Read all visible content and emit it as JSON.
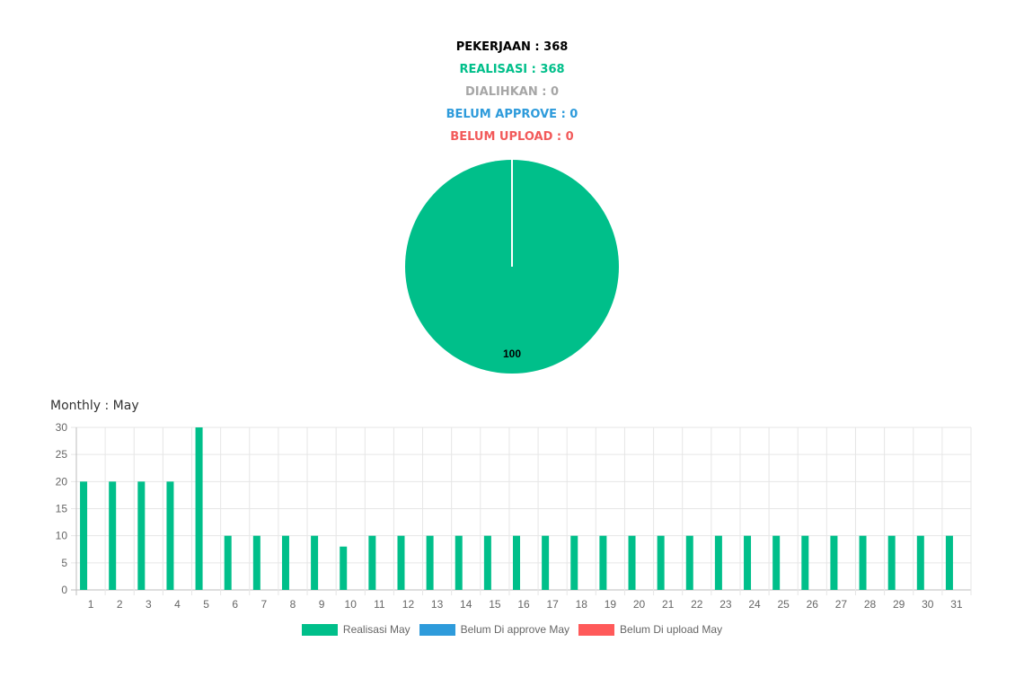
{
  "summary": {
    "pekerjaan": "PEKERJAAN : 368",
    "realisasi": "REALISASI : 368",
    "dialihkan": "DIALIHKAN : 0",
    "belum_approve": "BELUM APPROVE : 0",
    "belum_upload": "BELUM UPLOAD : 0"
  },
  "colors": {
    "pekerjaan": "#000000",
    "realisasi": "#00BF8A",
    "dialihkan": "#A6A6A6",
    "belum_approve": "#2E9BDB",
    "belum_upload": "#F25A5A"
  },
  "monthly": {
    "title": "Monthly : May"
  },
  "chart_data": [
    {
      "type": "pie",
      "slices": [
        {
          "value": 100,
          "color": "#00BF8A"
        },
        {
          "value": 0,
          "color": "#2E9BDB"
        },
        {
          "value": 0,
          "color": "#F25A5A"
        }
      ],
      "data_label": "100"
    },
    {
      "type": "bar",
      "categories": [
        "1",
        "2",
        "3",
        "4",
        "5",
        "6",
        "7",
        "8",
        "9",
        "10",
        "11",
        "12",
        "13",
        "14",
        "15",
        "16",
        "17",
        "18",
        "19",
        "20",
        "21",
        "22",
        "23",
        "24",
        "25",
        "26",
        "27",
        "28",
        "29",
        "30",
        "31"
      ],
      "series": [
        {
          "name": "Realisasi May",
          "color": "#00BF8A",
          "values": [
            20,
            20,
            20,
            20,
            30,
            10,
            10,
            10,
            10,
            8,
            10,
            10,
            10,
            10,
            10,
            10,
            10,
            10,
            10,
            10,
            10,
            10,
            10,
            10,
            10,
            10,
            10,
            10,
            10,
            10,
            10
          ]
        },
        {
          "name": "Belum Di approve May",
          "color": "#2E9BDB",
          "values": [
            0,
            0,
            0,
            0,
            0,
            0,
            0,
            0,
            0,
            0,
            0,
            0,
            0,
            0,
            0,
            0,
            0,
            0,
            0,
            0,
            0,
            0,
            0,
            0,
            0,
            0,
            0,
            0,
            0,
            0,
            0
          ]
        },
        {
          "name": "Belum Di upload May",
          "color": "#FF5A5A",
          "values": [
            0,
            0,
            0,
            0,
            0,
            0,
            0,
            0,
            0,
            0,
            0,
            0,
            0,
            0,
            0,
            0,
            0,
            0,
            0,
            0,
            0,
            0,
            0,
            0,
            0,
            0,
            0,
            0,
            0,
            0,
            0
          ]
        }
      ],
      "yticks": [
        "0",
        "5",
        "10",
        "15",
        "20",
        "25",
        "30"
      ],
      "ylim": [
        0,
        30
      ],
      "grid": true,
      "legend": "bottom-center"
    }
  ]
}
